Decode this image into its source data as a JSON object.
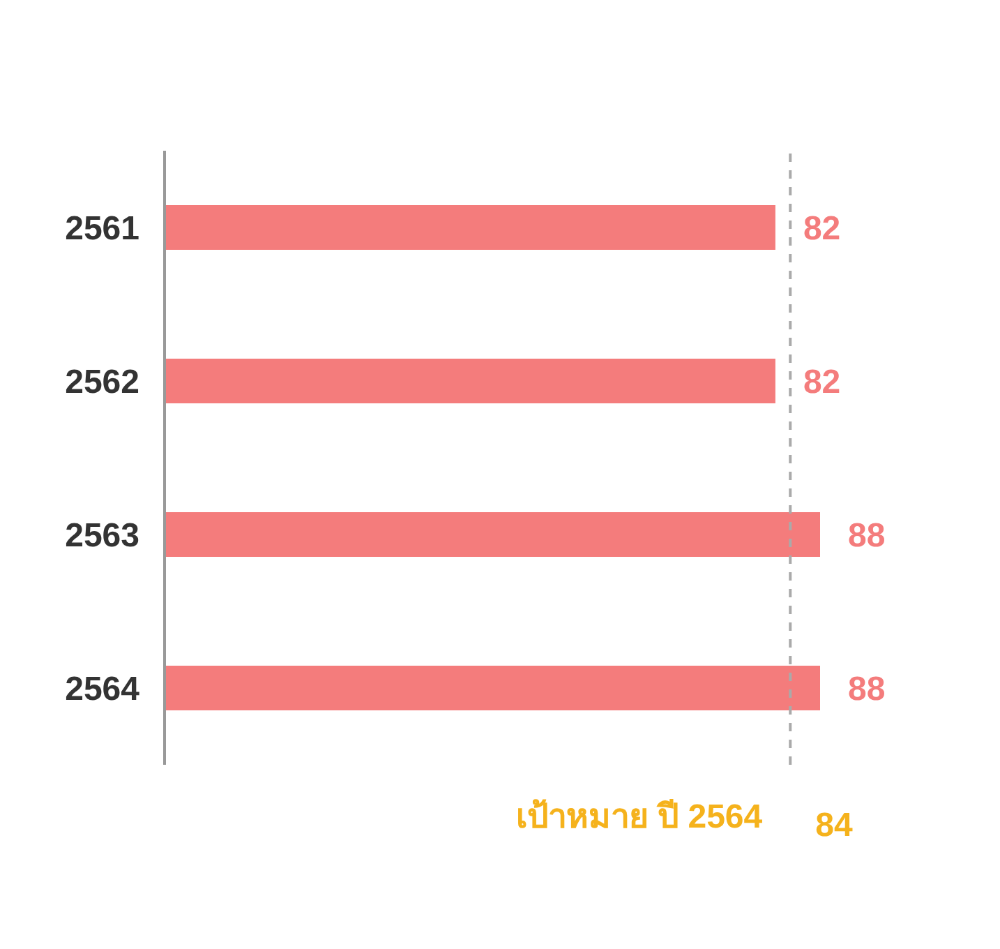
{
  "chart_data": {
    "type": "bar",
    "orientation": "horizontal",
    "categories": [
      "2561",
      "2562",
      "2563",
      "2564"
    ],
    "values": [
      82,
      82,
      88,
      88
    ],
    "color": "#f47c7c",
    "data_labels": true,
    "tick_labels": "y",
    "grid": false,
    "legend": false,
    "annotations": [
      "84"
    ],
    "ref_lines": [
      {
        "axis": "x",
        "value": 84,
        "label": "เป้าหมาย ปี 2564",
        "color": "#aaaaaa",
        "line_style": "dashed"
      }
    ]
  }
}
